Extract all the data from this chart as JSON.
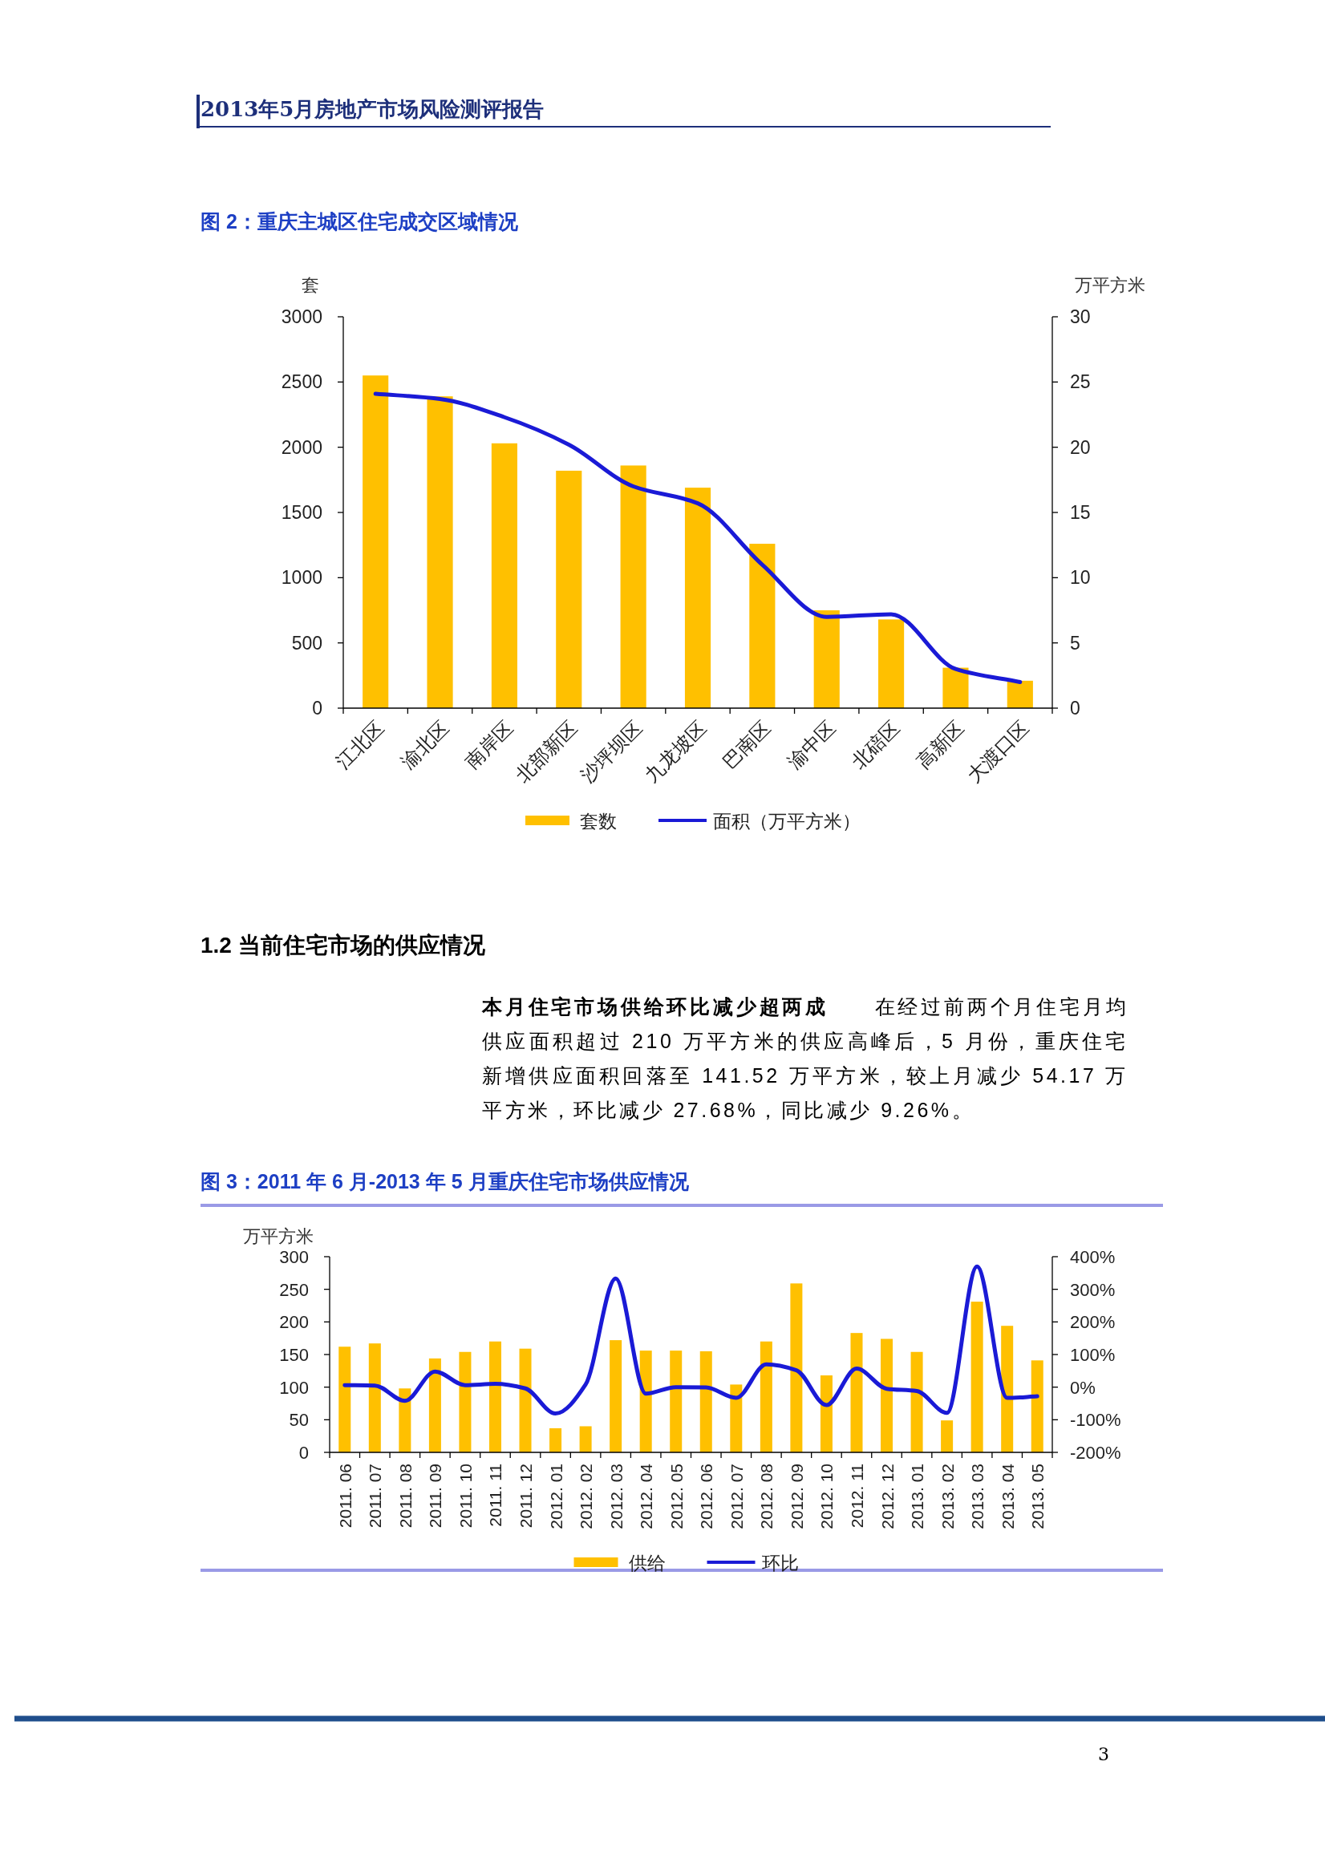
{
  "chart_data": [
    {
      "type": "bar",
      "title": "图 2：重庆主城区住宅成交区域情况",
      "ylabel": "套",
      "y2label": "万平方米",
      "categories": [
        "江北区",
        "渝北区",
        "南岸区",
        "北部新区",
        "沙坪坝区",
        "九龙坡区",
        "巴南区",
        "渝中区",
        "北碚区",
        "高新区",
        "大渡口区"
      ],
      "series": [
        {
          "name": "套数",
          "color": "#ffc000",
          "values": [
            2550,
            2390,
            2030,
            1820,
            1860,
            1690,
            1260,
            750,
            680,
            310,
            210
          ]
        },
        {
          "name": "面积（万平方米）",
          "type": "line",
          "axis": "y2",
          "color": "#1a1ad6",
          "values": [
            24.1,
            23.7,
            22.3,
            20.2,
            17.0,
            15.7,
            11.0,
            7.0,
            7.2,
            3.0,
            2.0
          ]
        }
      ],
      "ylim": [
        0,
        3000
      ],
      "yticks": [
        0,
        500,
        1000,
        1500,
        2000,
        2500,
        3000
      ],
      "y2lim": [
        0,
        30
      ],
      "y2ticks": [
        0,
        5,
        10,
        15,
        20,
        25,
        30
      ],
      "legend": "bottom",
      "marker": "none",
      "annotations": [
        "2013年5月房地产市场风险测评报告"
      ]
    },
    {
      "type": "bar",
      "title": "图 3：2011 年 6 月-2013 年 5 月重庆住宅市场供应情况",
      "ylabel": "万平方米",
      "categories": [
        "2011. 06",
        "2011. 07",
        "2011. 08",
        "2011. 09",
        "2011. 10",
        "2011. 11",
        "2011. 12",
        "2012. 01",
        "2012. 02",
        "2012. 03",
        "2012. 04",
        "2012. 05",
        "2012. 06",
        "2012. 07",
        "2012. 08",
        "2012. 09",
        "2012. 10",
        "2012. 11",
        "2012. 12",
        "2013. 01",
        "2013. 02",
        "2013. 03",
        "2013. 04",
        "2013. 05"
      ],
      "series": [
        {
          "name": "供给",
          "color": "#ffc000",
          "values": [
            162,
            167,
            98,
            144,
            154,
            170,
            159,
            37,
            40,
            172,
            156,
            156,
            155,
            104,
            170,
            259,
            118,
            183,
            174,
            154,
            49,
            231,
            194,
            141
          ]
        },
        {
          "name": "环比",
          "type": "line",
          "axis": "y2",
          "color": "#1a1ad6",
          "values": [
            6,
            5,
            -42,
            48,
            6,
            10,
            -4,
            -81,
            8,
            333,
            -20,
            0,
            -1,
            -33,
            70,
            52,
            -55,
            57,
            -5,
            -12,
            -79,
            370,
            -33,
            -28
          ]
        }
      ],
      "ylim": [
        0,
        300
      ],
      "yticks": [
        0,
        50,
        100,
        150,
        200,
        250,
        300
      ],
      "y2lim": [
        -200,
        400
      ],
      "y2ticks": [
        {
          "value": -200,
          "label": "-200%"
        },
        {
          "value": -100,
          "label": "-100%"
        },
        {
          "value": 0,
          "label": "0%"
        },
        {
          "value": 100,
          "label": "100%"
        },
        {
          "value": 200,
          "label": "200%"
        },
        {
          "value": 300,
          "label": "300%"
        },
        {
          "value": 400,
          "label": "400%"
        }
      ],
      "legend": "bottom",
      "marker": "none",
      "annotations": [
        "1.2 当前住宅市场的供应情况",
        "**本月住宅市场供给环比减少超两成**　　在经过前两个月住宅月均供应面积超过 210 万平方米的供应高峰后，5 月份，重庆住宅新增供应面积回落至 141.52 万平方米，较上月减少 54.17 万平方米，环比减少 27.68%，同比减少 9.26%。",
        "3"
      ]
    }
  ]
}
